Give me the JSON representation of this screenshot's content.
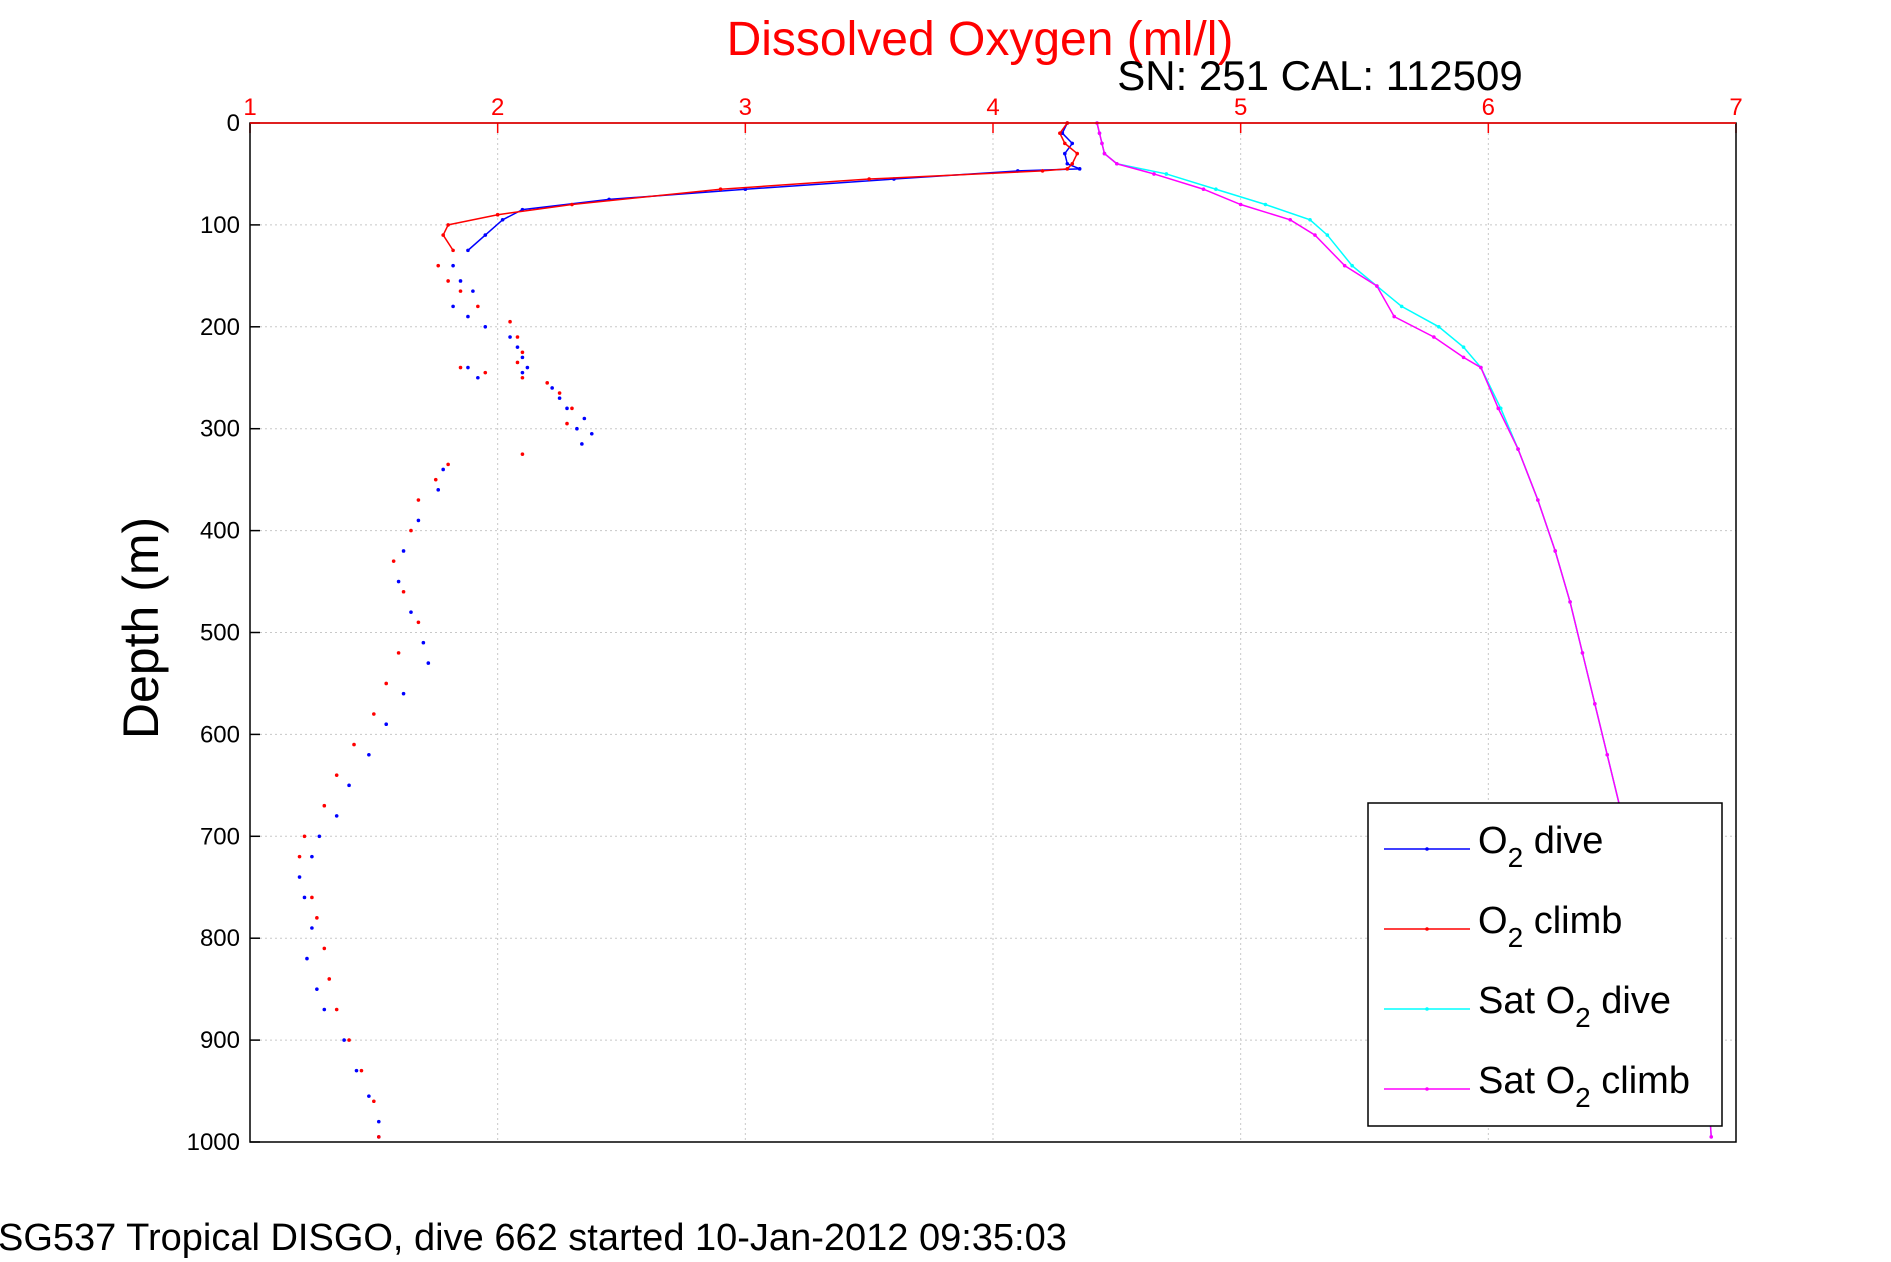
{
  "chart_data": {
    "type": "scatter",
    "title": "Dissolved Oxygen (ml/l)",
    "subtitle": "SN: 251  CAL: 112509",
    "ylabel": "Depth (m)",
    "footer": "SG537 Tropical DISGO, dive 662 started 10-Jan-2012 09:35:03",
    "xlim": [
      1,
      7
    ],
    "ylim": [
      0,
      1000
    ],
    "y_reversed": true,
    "x_axis_position": "top",
    "x_ticks": [
      "1",
      "2",
      "3",
      "4",
      "5",
      "6",
      "7"
    ],
    "y_ticks": [
      "0",
      "100",
      "200",
      "300",
      "400",
      "500",
      "600",
      "700",
      "800",
      "900",
      "1000"
    ],
    "grid": true,
    "legend_position": "lower-right",
    "colors": {
      "title": "#ff0000",
      "x_axis": "#ff0000",
      "y_axis": "#000000",
      "o2_dive": "#0000ff",
      "o2_climb": "#ff0000",
      "sat_dive": "#00ffff",
      "sat_climb": "#ff00ff"
    },
    "series": [
      {
        "name": "O2 dive",
        "legend": {
          "pre": "O",
          "sub": "2",
          "post": " dive"
        },
        "color": "#0000ff",
        "x": [
          4.3,
          4.28,
          4.32,
          4.29,
          4.3,
          4.35,
          4.1,
          3.6,
          3.0,
          2.45,
          2.1,
          2.02,
          1.95,
          1.88,
          1.82,
          1.85,
          1.9,
          1.82,
          1.88,
          1.95,
          2.05,
          2.08,
          2.1,
          2.12,
          2.1,
          1.88,
          1.92,
          2.22,
          2.25,
          2.28,
          2.35,
          2.32,
          2.38,
          2.34,
          1.78,
          1.76,
          1.68,
          1.62,
          1.6,
          1.65,
          1.7,
          1.72,
          1.62,
          1.55,
          1.48,
          1.4,
          1.35,
          1.28,
          1.25,
          1.2,
          1.22,
          1.25,
          1.23,
          1.27,
          1.3,
          1.38,
          1.43,
          1.48,
          1.52,
          1.52
        ],
        "y": [
          0,
          10,
          20,
          30,
          40,
          45,
          47,
          55,
          65,
          75,
          85,
          95,
          110,
          125,
          140,
          155,
          165,
          180,
          190,
          200,
          210,
          220,
          230,
          240,
          245,
          240,
          250,
          260,
          270,
          280,
          290,
          300,
          305,
          315,
          340,
          360,
          390,
          420,
          450,
          480,
          510,
          530,
          560,
          590,
          620,
          650,
          680,
          700,
          720,
          740,
          760,
          790,
          820,
          850,
          870,
          900,
          930,
          955,
          980,
          995
        ]
      },
      {
        "name": "O2 climb",
        "legend": {
          "pre": "O",
          "sub": "2",
          "post": " climb"
        },
        "color": "#ff0000",
        "x": [
          4.3,
          4.27,
          4.29,
          4.34,
          4.32,
          4.3,
          4.2,
          3.5,
          2.9,
          2.3,
          2.0,
          1.8,
          1.78,
          1.82,
          1.76,
          1.8,
          1.85,
          1.92,
          2.05,
          2.08,
          2.1,
          2.08,
          1.85,
          1.95,
          2.1,
          2.2,
          2.25,
          2.3,
          2.28,
          2.1,
          1.8,
          1.75,
          1.68,
          1.65,
          1.58,
          1.62,
          1.68,
          1.6,
          1.55,
          1.5,
          1.42,
          1.35,
          1.3,
          1.22,
          1.2,
          1.25,
          1.27,
          1.3,
          1.32,
          1.35,
          1.4,
          1.45,
          1.5,
          1.52
        ],
        "y": [
          0,
          10,
          20,
          30,
          40,
          45,
          47,
          55,
          65,
          80,
          90,
          100,
          110,
          125,
          140,
          155,
          165,
          180,
          195,
          210,
          225,
          235,
          240,
          245,
          250,
          255,
          265,
          280,
          295,
          325,
          335,
          350,
          370,
          400,
          430,
          460,
          490,
          520,
          550,
          580,
          610,
          640,
          670,
          700,
          720,
          760,
          780,
          810,
          840,
          870,
          900,
          930,
          960,
          995
        ]
      },
      {
        "name": "Sat O2 dive",
        "legend": {
          "pre": "Sat O",
          "sub": "2",
          "post": " dive"
        },
        "color": "#00ffff",
        "x": [
          4.42,
          4.43,
          4.44,
          4.45,
          4.5,
          4.7,
          4.9,
          5.1,
          5.28,
          5.35,
          5.45,
          5.55,
          5.65,
          5.8,
          5.9,
          5.97,
          6.05,
          6.12,
          6.2,
          6.27,
          6.33,
          6.38,
          6.43,
          6.48,
          6.53,
          6.6,
          6.68,
          6.75,
          6.82,
          6.88,
          6.9
        ],
        "y": [
          0,
          10,
          20,
          30,
          40,
          50,
          65,
          80,
          95,
          110,
          140,
          160,
          180,
          200,
          220,
          240,
          280,
          320,
          370,
          420,
          470,
          520,
          570,
          620,
          670,
          720,
          770,
          820,
          870,
          920,
          995
        ]
      },
      {
        "name": "Sat O2 climb",
        "legend": {
          "pre": "Sat O",
          "sub": "2",
          "post": " climb"
        },
        "color": "#ff00ff",
        "x": [
          4.42,
          4.43,
          4.44,
          4.45,
          4.5,
          4.65,
          4.85,
          5.0,
          5.2,
          5.3,
          5.42,
          5.55,
          5.62,
          5.78,
          5.9,
          5.97,
          6.04,
          6.12,
          6.2,
          6.27,
          6.33,
          6.38,
          6.43,
          6.48,
          6.53,
          6.6,
          6.68,
          6.75,
          6.82,
          6.88,
          6.9
        ],
        "y": [
          0,
          10,
          20,
          30,
          40,
          50,
          65,
          80,
          95,
          110,
          140,
          160,
          190,
          210,
          230,
          240,
          280,
          320,
          370,
          420,
          470,
          520,
          570,
          620,
          670,
          720,
          770,
          820,
          870,
          920,
          995
        ]
      }
    ]
  }
}
